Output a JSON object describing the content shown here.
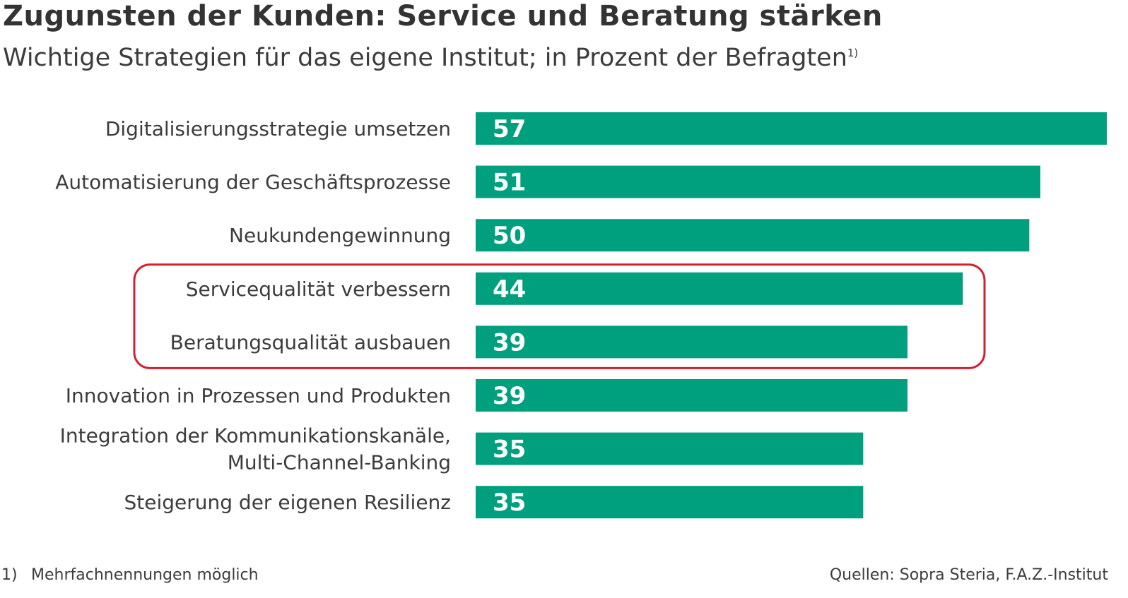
{
  "header": {
    "title": "Zugunsten der Kunden: Service und Beratung stärken",
    "subtitle": "Wichtige Strategien für das eigene Institut; in Prozent der Befragten",
    "subtitle_footnote_ref": "1)"
  },
  "footer": {
    "footnote_marker": "1)",
    "footnote_text": "Mehrfachnennungen möglich",
    "source": "Quellen: Sopra Steria, F.A.Z.-Institut"
  },
  "chart_data": {
    "type": "bar",
    "orientation": "horizontal",
    "title": "Zugunsten der Kunden: Service und Beratung stärken",
    "subtitle": "Wichtige Strategien für das eigene Institut; in Prozent der Befragten",
    "unit": "",
    "categories": [
      [
        "Digitalisierungsstrategie umsetzen"
      ],
      [
        "Automatisierung der Geschäftsprozesse"
      ],
      [
        "Neukundengewinnung"
      ],
      [
        "Servicequalität verbessern"
      ],
      [
        "Beratungsqualität ausbauen"
      ],
      [
        "Innovation in Prozessen und Produkten"
      ],
      [
        "Integration der Kommunikationskanäle,",
        "Multi-Channel-Banking"
      ],
      [
        "Steigerung der eigenen Resilienz"
      ]
    ],
    "values": [
      57,
      51,
      50,
      44,
      39,
      39,
      35,
      35
    ],
    "highlighted_categories": [
      3,
      4
    ],
    "xlim": [
      0,
      57
    ],
    "grid": false,
    "legend": "none",
    "colors": {
      "bar": "#00a07e",
      "highlight_frame": "#d4202f",
      "label_text": "#3c3c3c",
      "value_text": "#ffffff"
    }
  }
}
